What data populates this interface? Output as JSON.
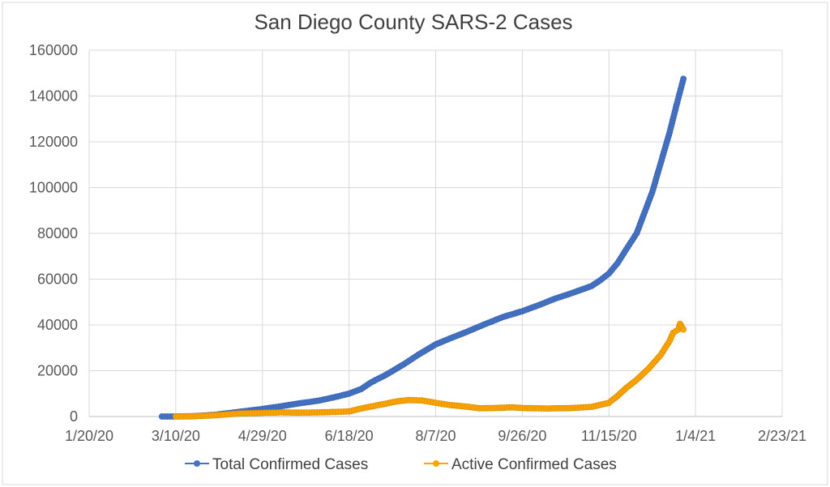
{
  "chart_data": {
    "type": "scatter",
    "title": "San Diego County SARS-2 Cases",
    "xlabel": "",
    "ylabel": "",
    "x_axis_type": "date",
    "x_ticks": [
      "1/20/20",
      "3/10/20",
      "4/29/20",
      "6/18/20",
      "8/7/20",
      "9/26/20",
      "11/15/20",
      "1/4/21",
      "2/23/21"
    ],
    "xlim": [
      "1/20/20",
      "2/23/21"
    ],
    "y_ticks": [
      0,
      20000,
      40000,
      60000,
      80000,
      100000,
      120000,
      140000,
      160000
    ],
    "ylim": [
      0,
      160000
    ],
    "grid": true,
    "legend_position": "bottom",
    "series": [
      {
        "name": "Total Confirmed Cases",
        "color": "#4472C4",
        "points": [
          [
            "3/2/20",
            0
          ],
          [
            "3/10/20",
            20
          ],
          [
            "3/20/20",
            160
          ],
          [
            "4/1/20",
            700
          ],
          [
            "4/15/20",
            2000
          ],
          [
            "4/29/20",
            3300
          ],
          [
            "5/10/20",
            4500
          ],
          [
            "5/20/20",
            5700
          ],
          [
            "6/1/20",
            7000
          ],
          [
            "6/10/20",
            8500
          ],
          [
            "6/18/20",
            10000
          ],
          [
            "6/25/20",
            12000
          ],
          [
            "7/1/20",
            15000
          ],
          [
            "7/10/20",
            18500
          ],
          [
            "7/20/20",
            23000
          ],
          [
            "7/28/20",
            27000
          ],
          [
            "8/7/20",
            31500
          ],
          [
            "8/15/20",
            34000
          ],
          [
            "8/25/20",
            37000
          ],
          [
            "9/5/20",
            40500
          ],
          [
            "9/15/20",
            43500
          ],
          [
            "9/26/20",
            46000
          ],
          [
            "10/5/20",
            48500
          ],
          [
            "10/15/20",
            51500
          ],
          [
            "10/25/20",
            54000
          ],
          [
            "11/5/20",
            57000
          ],
          [
            "11/10/20",
            59500
          ],
          [
            "11/15/20",
            62500
          ],
          [
            "11/20/20",
            67000
          ],
          [
            "11/25/20",
            73000
          ],
          [
            "12/1/20",
            80000
          ],
          [
            "12/5/20",
            88000
          ],
          [
            "12/10/20",
            98000
          ],
          [
            "12/15/20",
            111000
          ],
          [
            "12/20/20",
            124000
          ],
          [
            "12/24/20",
            136000
          ],
          [
            "12/28/20",
            147500
          ]
        ]
      },
      {
        "name": "Active Confirmed Cases",
        "color": "#FFA500",
        "points": [
          [
            "3/10/20",
            0
          ],
          [
            "3/20/20",
            100
          ],
          [
            "4/1/20",
            500
          ],
          [
            "4/15/20",
            1300
          ],
          [
            "4/29/20",
            1600
          ],
          [
            "5/10/20",
            1800
          ],
          [
            "5/20/20",
            1700
          ],
          [
            "6/1/20",
            1800
          ],
          [
            "6/10/20",
            2000
          ],
          [
            "6/18/20",
            2200
          ],
          [
            "6/25/20",
            3500
          ],
          [
            "7/5/20",
            5000
          ],
          [
            "7/15/20",
            6500
          ],
          [
            "7/22/20",
            7200
          ],
          [
            "7/30/20",
            7000
          ],
          [
            "8/7/20",
            6000
          ],
          [
            "8/15/20",
            5000
          ],
          [
            "8/25/20",
            4300
          ],
          [
            "9/1/20",
            3600
          ],
          [
            "9/10/20",
            3700
          ],
          [
            "9/20/20",
            4000
          ],
          [
            "9/26/20",
            3700
          ],
          [
            "10/10/20",
            3500
          ],
          [
            "10/25/20",
            3700
          ],
          [
            "11/5/20",
            4200
          ],
          [
            "11/15/20",
            6000
          ],
          [
            "11/20/20",
            9000
          ],
          [
            "11/25/20",
            12500
          ],
          [
            "12/1/20",
            16000
          ],
          [
            "12/8/20",
            21000
          ],
          [
            "12/15/20",
            27000
          ],
          [
            "12/20/20",
            33000
          ],
          [
            "12/22/20",
            36500
          ],
          [
            "12/25/20",
            38000
          ],
          [
            "12/26/20",
            40500
          ],
          [
            "12/28/20",
            38000
          ]
        ]
      }
    ]
  }
}
